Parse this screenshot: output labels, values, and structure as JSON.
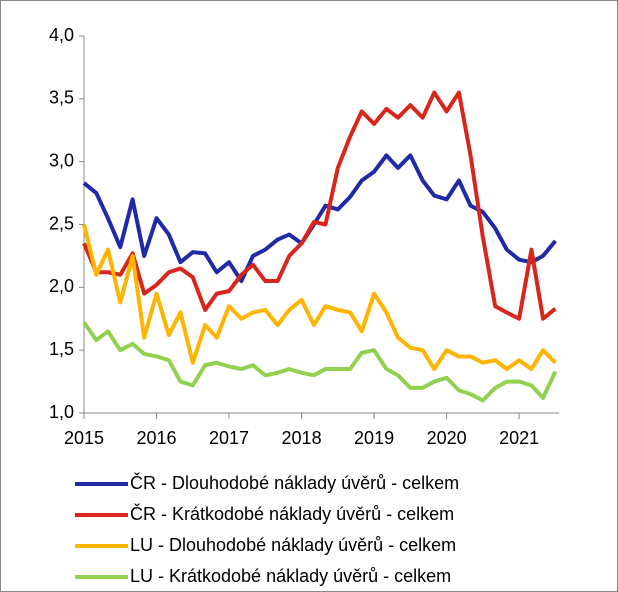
{
  "chart_data": {
    "type": "line",
    "x": [
      2015,
      2015.17,
      2015.33,
      2015.5,
      2015.67,
      2015.83,
      2016,
      2016.17,
      2016.33,
      2016.5,
      2016.67,
      2016.83,
      2017,
      2017.17,
      2017.33,
      2017.5,
      2017.67,
      2017.83,
      2018,
      2018.17,
      2018.33,
      2018.5,
      2018.67,
      2018.83,
      2019,
      2019.17,
      2019.33,
      2019.5,
      2019.67,
      2019.83,
      2020,
      2020.17,
      2020.33,
      2020.5,
      2020.67,
      2020.83,
      2021,
      2021.17,
      2021.33,
      2021.5
    ],
    "series": [
      {
        "name": "ČR - Dlouhodobé náklady úvěrů - celkem",
        "color": "#1f2aa8",
        "values": [
          2.83,
          2.75,
          2.55,
          2.32,
          2.7,
          2.25,
          2.55,
          2.42,
          2.2,
          2.28,
          2.27,
          2.12,
          2.2,
          2.05,
          2.25,
          2.3,
          2.38,
          2.42,
          2.35,
          2.5,
          2.65,
          2.62,
          2.72,
          2.85,
          2.92,
          3.05,
          2.95,
          3.05,
          2.85,
          2.73,
          2.7,
          2.85,
          2.65,
          2.6,
          2.47,
          2.3,
          2.22,
          2.2,
          2.25,
          2.37
        ]
      },
      {
        "name": "ČR - Krátkodobé náklady úvěrů - celkem",
        "color": "#d9261c",
        "values": [
          2.35,
          2.12,
          2.12,
          2.1,
          2.27,
          1.95,
          2.02,
          2.12,
          2.15,
          2.08,
          1.82,
          1.95,
          1.97,
          2.1,
          2.18,
          2.05,
          2.05,
          2.25,
          2.35,
          2.52,
          2.5,
          2.95,
          3.2,
          3.4,
          3.3,
          3.42,
          3.35,
          3.45,
          3.35,
          3.55,
          3.4,
          3.55,
          3.05,
          2.4,
          1.85,
          1.8,
          1.75,
          2.3,
          1.75,
          1.83
        ]
      },
      {
        "name": "LU - Dlouhodobé náklady úvěrů - celkem",
        "color": "#ffb400",
        "values": [
          2.5,
          2.1,
          2.3,
          1.88,
          2.25,
          1.6,
          1.95,
          1.62,
          1.8,
          1.4,
          1.7,
          1.6,
          1.85,
          1.75,
          1.8,
          1.82,
          1.7,
          1.82,
          1.9,
          1.7,
          1.85,
          1.82,
          1.8,
          1.65,
          1.95,
          1.8,
          1.6,
          1.52,
          1.5,
          1.35,
          1.5,
          1.45,
          1.45,
          1.4,
          1.42,
          1.35,
          1.42,
          1.35,
          1.5,
          1.4
        ]
      },
      {
        "name": "LU - Krátkodobé náklady úvěrů - celkem",
        "color": "#92d050",
        "values": [
          1.72,
          1.58,
          1.65,
          1.5,
          1.55,
          1.47,
          1.45,
          1.42,
          1.25,
          1.22,
          1.38,
          1.4,
          1.37,
          1.35,
          1.38,
          1.3,
          1.32,
          1.35,
          1.32,
          1.3,
          1.35,
          1.35,
          1.35,
          1.48,
          1.5,
          1.35,
          1.3,
          1.2,
          1.2,
          1.25,
          1.28,
          1.18,
          1.15,
          1.1,
          1.2,
          1.25,
          1.25,
          1.22,
          1.12,
          1.33
        ]
      }
    ],
    "xlim": [
      2015,
      2021.55
    ],
    "xticks": [
      2015,
      2016,
      2017,
      2018,
      2019,
      2020,
      2021
    ],
    "ylim": [
      1,
      4
    ],
    "yticks": [
      {
        "value": 1,
        "label": "1,0"
      },
      {
        "value": 1.5,
        "label": "1,5"
      },
      {
        "value": 2,
        "label": "2,0"
      },
      {
        "value": 2.5,
        "label": "2,5"
      },
      {
        "value": 3,
        "label": "3,0"
      },
      {
        "value": 3.5,
        "label": "3,5"
      },
      {
        "value": 4,
        "label": "4,0"
      }
    ],
    "grid": false,
    "legend": "bottom"
  }
}
